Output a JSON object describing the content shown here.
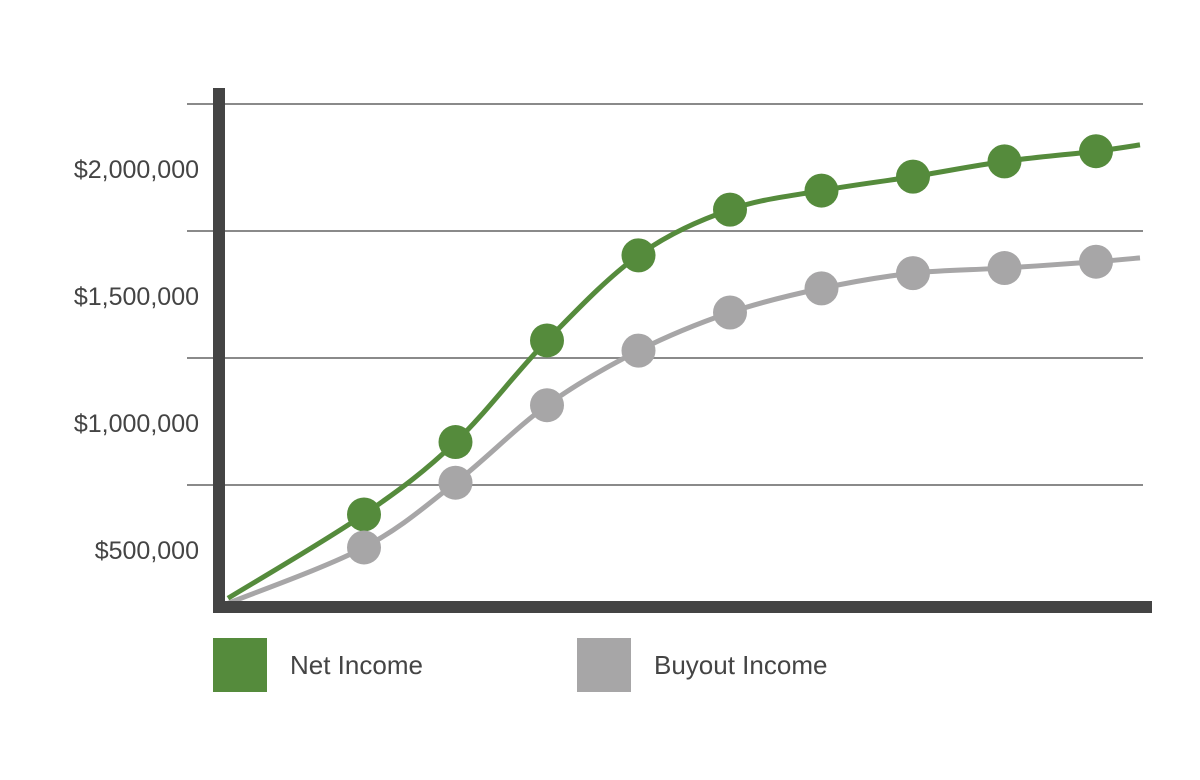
{
  "chart_data": {
    "type": "line",
    "title": "",
    "xlabel": "",
    "ylabel": "",
    "y_tick_labels": [
      "$500,000",
      "$1,000,000",
      "$1,500,000",
      "$2,000,000"
    ],
    "y_ticks": [
      500000,
      1000000,
      1500000,
      2000000
    ],
    "grid": true,
    "smooth": true,
    "legend_position": "bottom",
    "x": [
      0,
      1,
      2,
      3,
      4,
      5,
      6,
      7,
      8,
      9,
      10
    ],
    "markers_at": [
      1,
      2,
      3,
      4,
      5,
      6,
      7,
      8,
      9
    ],
    "series": [
      {
        "name": "Net Income",
        "color": "#558b3c",
        "values": [
          310000,
          640000,
          925000,
          1325000,
          1660000,
          1840000,
          1915000,
          1970000,
          2030000,
          2070000,
          2095000
        ]
      },
      {
        "name": "Buyout Income",
        "color": "#a7a6a7",
        "values": [
          290000,
          510000,
          765000,
          1070000,
          1285000,
          1435000,
          1530000,
          1590000,
          1610000,
          1635000,
          1650000
        ]
      }
    ]
  }
}
